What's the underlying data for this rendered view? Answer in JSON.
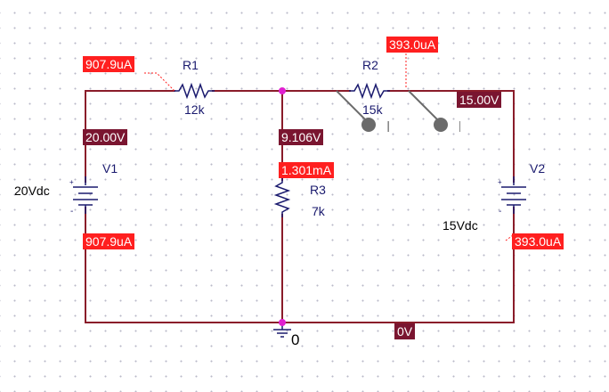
{
  "components": {
    "r1": {
      "name": "R1",
      "value": "12k"
    },
    "r2": {
      "name": "R2",
      "value": "15k"
    },
    "r3": {
      "name": "R3",
      "value": "7k"
    },
    "v1": {
      "name": "V1",
      "value": "20Vdc"
    },
    "v2": {
      "name": "V2",
      "value": "15Vdc"
    },
    "ground": {
      "label": "0"
    }
  },
  "currents": {
    "r1_top": "907.9uA",
    "v1_bottom": "907.9uA",
    "r2_top": "393.0uA",
    "r3": "1.301mA",
    "v2_bottom": "393.0uA"
  },
  "voltages": {
    "v1_node": "20.00V",
    "mid_node": "9.106V",
    "v2_node": "15.00V",
    "ground_node": "0V"
  },
  "colors": {
    "wire": "#8a1c2a",
    "current_tag": "#ff1f1f",
    "voltage_tag": "#7a1530",
    "node_dot": "#e020d0",
    "component": "#1a1a6e",
    "probe": "#6b6b6b"
  }
}
